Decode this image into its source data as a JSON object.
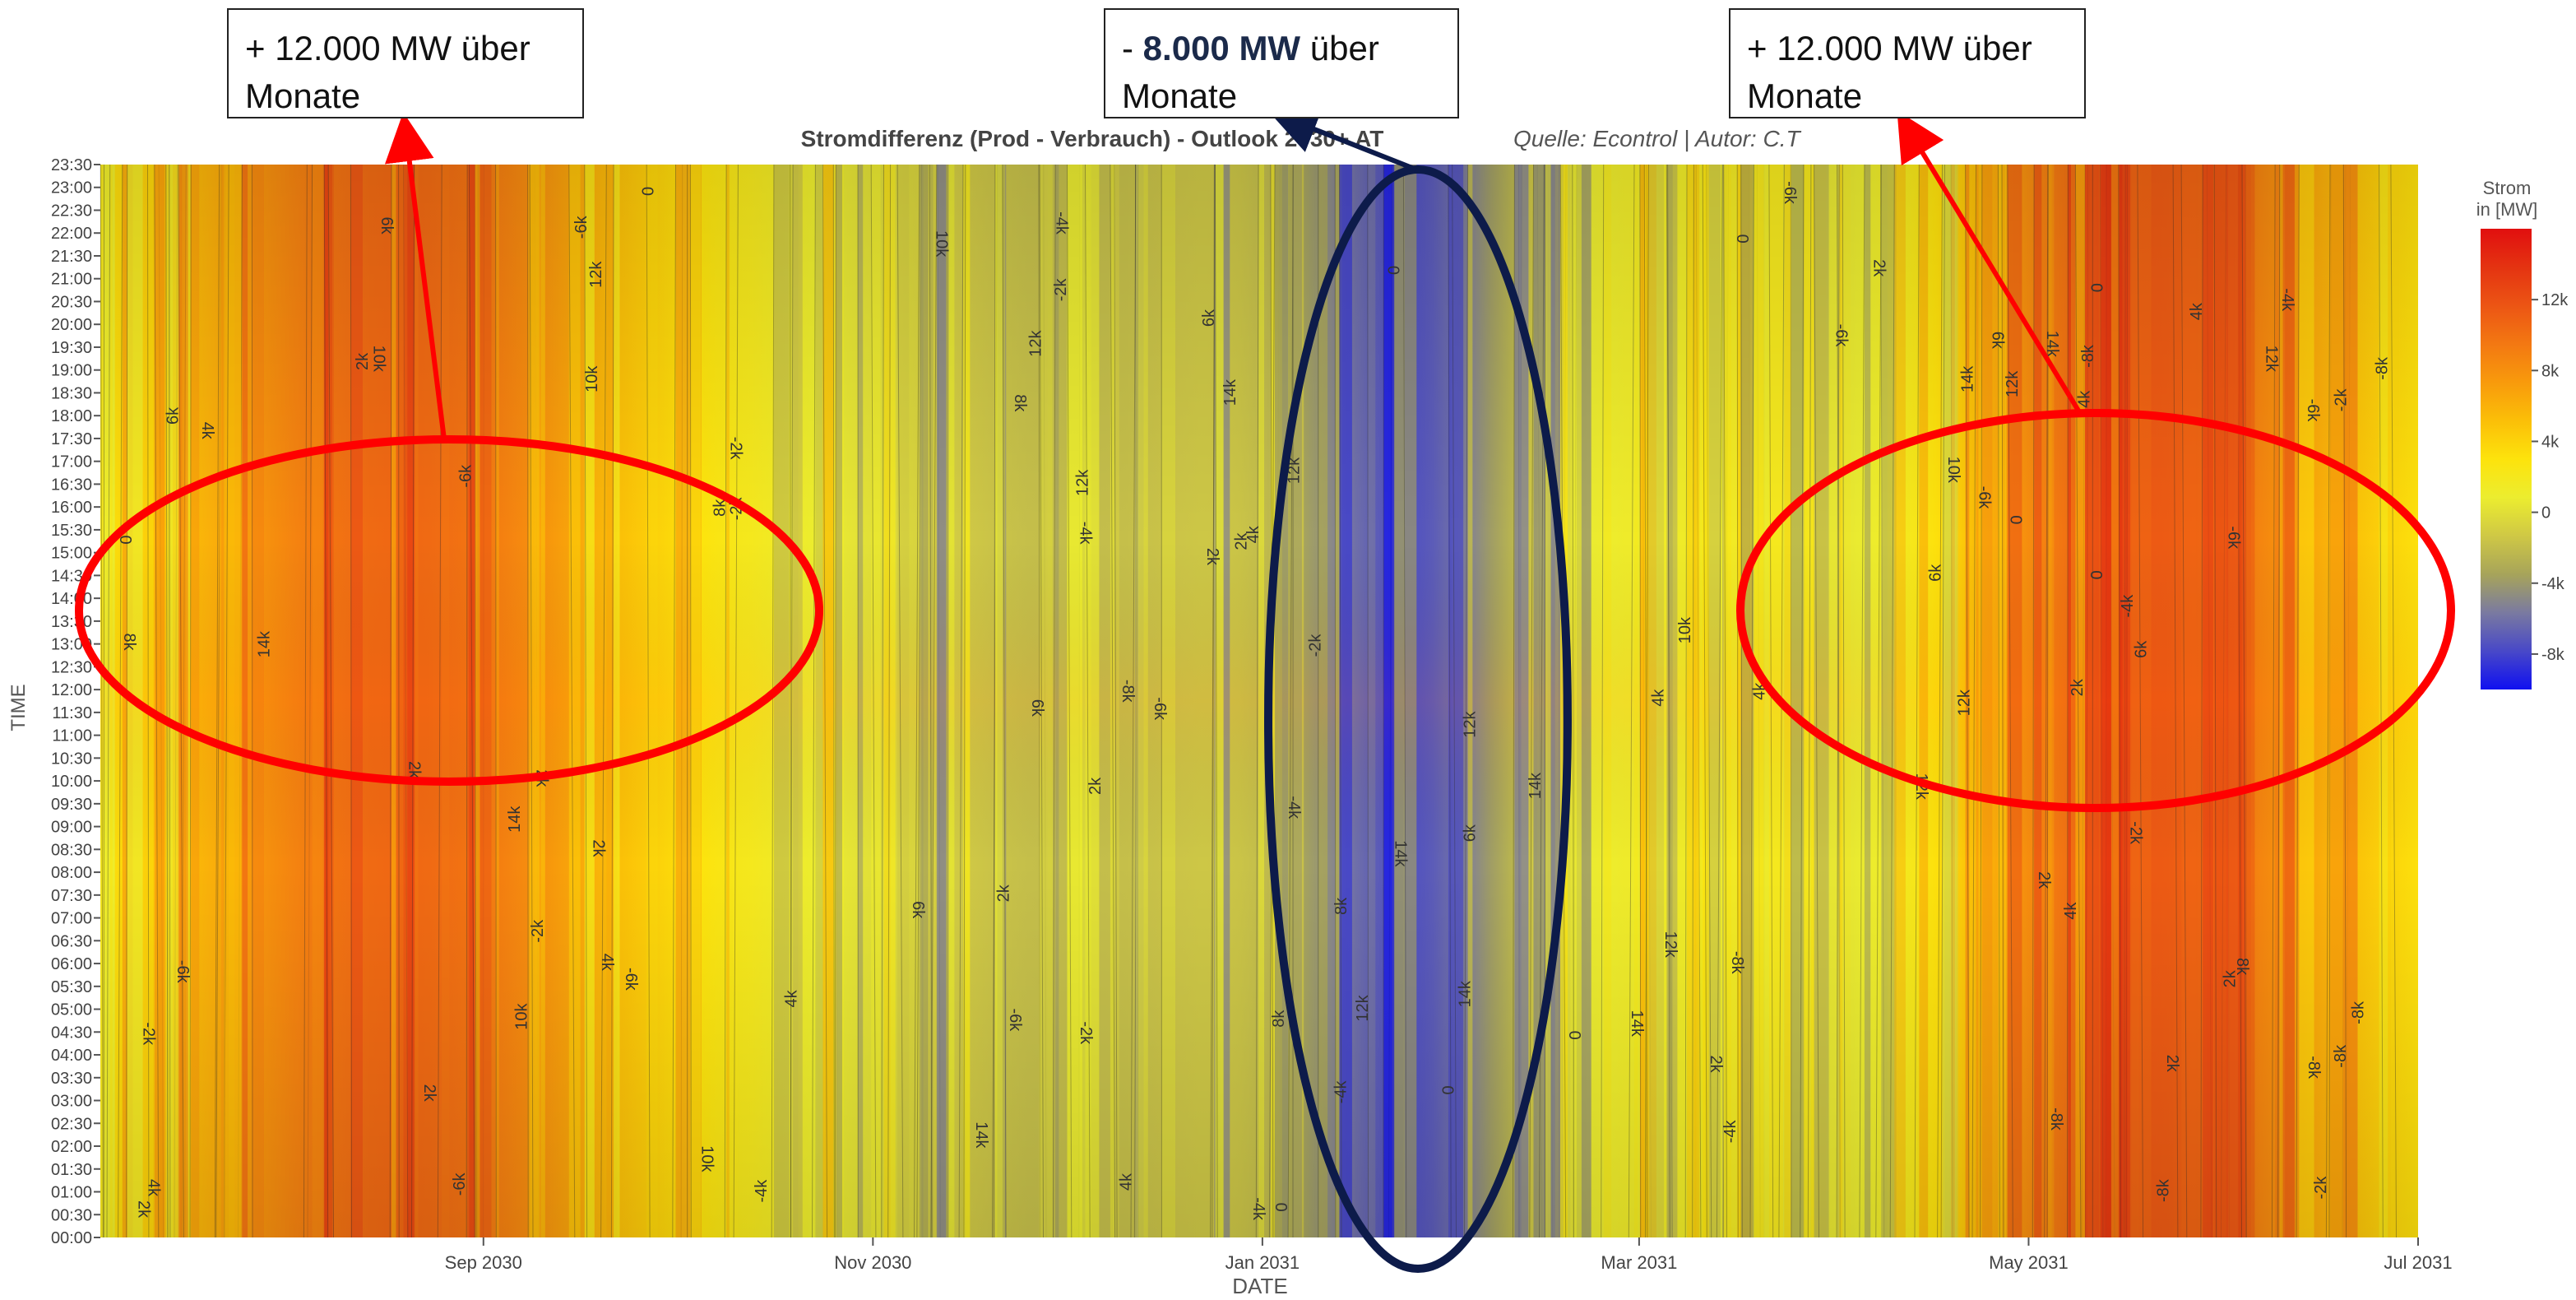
{
  "chart_data": {
    "type": "heatmap",
    "title": "Stromdifferenz (Prod - Verbrauch) - Outlook 2030+ AT",
    "source_note": "Quelle: Econtrol | Autor: C.T",
    "xlabel": "DATE",
    "ylabel": "TIME",
    "x_ticks": [
      "Sep 2030",
      "Nov 2030",
      "Jan 2031",
      "Mar 2031",
      "May 2031",
      "Jul 2031"
    ],
    "x_range": [
      "2030-07-03",
      "2031-07-01"
    ],
    "y_ticks": [
      "00:00",
      "00:30",
      "01:00",
      "01:30",
      "02:00",
      "02:30",
      "03:00",
      "03:30",
      "04:00",
      "04:30",
      "05:00",
      "05:30",
      "06:00",
      "06:30",
      "07:00",
      "07:30",
      "08:00",
      "08:30",
      "09:00",
      "09:30",
      "10:00",
      "10:30",
      "11:00",
      "11:30",
      "12:00",
      "12:30",
      "13:00",
      "13:30",
      "14:00",
      "14:30",
      "15:00",
      "15:30",
      "16:00",
      "16:30",
      "17:00",
      "17:30",
      "18:00",
      "18:30",
      "19:00",
      "19:30",
      "20:00",
      "20:30",
      "21:00",
      "21:30",
      "22:00",
      "22:30",
      "23:00",
      "23:30"
    ],
    "colorbar": {
      "title_line1": "Strom",
      "title_line2": "in [MW]",
      "ticks": [
        "12k",
        "8k",
        "4k",
        "0",
        "-4k",
        "-8k"
      ],
      "tick_values": [
        12000,
        8000,
        4000,
        0,
        -4000,
        -8000
      ],
      "range": [
        -10000,
        16000
      ],
      "colors": [
        "#1010f0",
        "#4848c8",
        "#7a7aa0",
        "#a7a45a",
        "#cfc845",
        "#eced2f",
        "#fde30c",
        "#fbbf08",
        "#f89a0c",
        "#f37812",
        "#ec5514",
        "#e43311",
        "#e10f0f"
      ]
    },
    "contour_labels": [
      "2k",
      "6k",
      "10k",
      "-2k",
      "12k",
      "4k",
      "8k",
      "14k",
      "0",
      "-4k",
      "-6k",
      "-8k"
    ],
    "highlights": [
      {
        "label": "+ 12.000 MW über Monate",
        "period": [
          "2030-07",
          "2030-10"
        ],
        "time": [
          "10:00",
          "17:00"
        ],
        "color": "#ff0000"
      },
      {
        "label": "- 8.000 MW über Monate",
        "period": [
          "2031-01",
          "2031-02"
        ],
        "time": [
          "00:00",
          "23:30"
        ],
        "color": "#0d1b4a"
      },
      {
        "label": "+ 12.000 MW über Monate",
        "period": [
          "2031-04",
          "2031-07"
        ],
        "time": [
          "10:00",
          "17:00"
        ],
        "color": "#ff0000"
      }
    ]
  },
  "annotations": {
    "box1_line1": "+ 12.000 MW über",
    "box1_line2": "Monate",
    "box2_prefix": "-",
    "box2_bold": "8.000 MW",
    "box2_suffix": "über",
    "box2_line2": "Monate",
    "box3_line1": "+ 12.000 MW über",
    "box3_line2": "Monate"
  }
}
